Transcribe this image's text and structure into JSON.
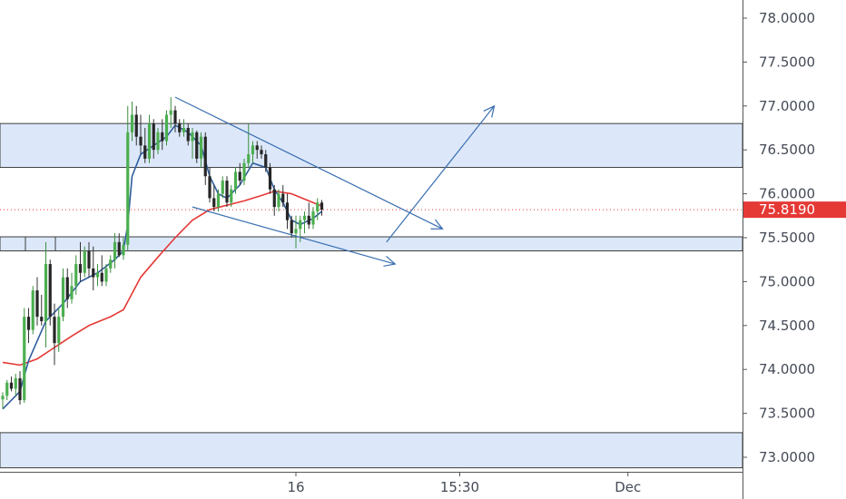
{
  "chart_data": {
    "type": "candlestick",
    "price_axis": {
      "ticks": [
        "78.0000",
        "77.5000",
        "77.0000",
        "76.5000",
        "76.0000",
        "75.5000",
        "75.0000",
        "74.5000",
        "74.0000",
        "73.5000",
        "73.0000"
      ],
      "range": [
        72.88,
        78.4
      ]
    },
    "time_axis": {
      "ticks": [
        {
          "label": "16",
          "bar": 68
        },
        {
          "label": "15:30",
          "bar": 106
        },
        {
          "label": "Dec",
          "bar": 145
        }
      ],
      "bar_range": [
        0,
        197
      ]
    },
    "last_price": {
      "value": 75.819,
      "label": "75.8190",
      "color": "#e53935"
    },
    "zones": [
      {
        "from": 76.3,
        "to": 76.8
      },
      {
        "from": 75.35,
        "to": 75.51
      },
      {
        "from": 72.88,
        "to": 73.28
      }
    ],
    "candles": [
      [
        0,
        73.66,
        73.74,
        73.55,
        73.7
      ],
      [
        1,
        73.7,
        73.88,
        73.65,
        73.85
      ],
      [
        2,
        73.85,
        73.92,
        73.75,
        73.78
      ],
      [
        3,
        73.78,
        73.95,
        73.7,
        73.9
      ],
      [
        4,
        73.9,
        73.98,
        73.6,
        73.65
      ],
      [
        5,
        73.65,
        74.7,
        73.62,
        74.6
      ],
      [
        6,
        74.6,
        74.7,
        74.3,
        74.45
      ],
      [
        7,
        74.45,
        74.95,
        74.4,
        74.9
      ],
      [
        8,
        74.9,
        75.05,
        74.5,
        74.6
      ],
      [
        9,
        74.6,
        74.85,
        74.5,
        74.55
      ],
      [
        10,
        74.55,
        75.45,
        74.25,
        75.2
      ],
      [
        11,
        75.2,
        75.25,
        74.5,
        74.6
      ],
      [
        12,
        74.6,
        74.75,
        74.05,
        74.3
      ],
      [
        13,
        74.3,
        74.7,
        74.2,
        74.6
      ],
      [
        14,
        74.6,
        75.15,
        74.55,
        75.05
      ],
      [
        15,
        75.05,
        75.15,
        74.7,
        74.8
      ],
      [
        16,
        74.8,
        75.1,
        74.75,
        74.95
      ],
      [
        17,
        74.95,
        75.3,
        74.85,
        75.2
      ],
      [
        18,
        75.2,
        75.45,
        75.0,
        75.1
      ],
      [
        19,
        75.1,
        75.4,
        75.05,
        75.35
      ],
      [
        20,
        75.35,
        75.45,
        75.05,
        75.15
      ],
      [
        21,
        75.15,
        75.4,
        74.9,
        75.05
      ],
      [
        22,
        75.05,
        75.2,
        74.95,
        75.1
      ],
      [
        23,
        75.1,
        75.3,
        74.95,
        75.0
      ],
      [
        24,
        75.0,
        75.2,
        74.95,
        75.15
      ],
      [
        25,
        75.15,
        75.3,
        75.1,
        75.25
      ],
      [
        26,
        75.25,
        75.55,
        75.15,
        75.45
      ],
      [
        27,
        75.45,
        75.55,
        75.28,
        75.3
      ],
      [
        28,
        75.3,
        75.5,
        75.25,
        75.42
      ],
      [
        29,
        75.42,
        77.0,
        75.35,
        76.7
      ],
      [
        30,
        76.7,
        77.05,
        76.6,
        76.9
      ],
      [
        31,
        76.9,
        77.0,
        76.55,
        76.65
      ],
      [
        32,
        76.65,
        76.9,
        76.45,
        76.55
      ],
      [
        33,
        76.55,
        76.75,
        76.35,
        76.4
      ],
      [
        34,
        76.4,
        76.9,
        76.35,
        76.8
      ],
      [
        35,
        76.8,
        76.85,
        76.4,
        76.5
      ],
      [
        36,
        76.5,
        76.75,
        76.45,
        76.7
      ],
      [
        37,
        76.7,
        76.85,
        76.5,
        76.6
      ],
      [
        38,
        76.6,
        76.95,
        76.55,
        76.9
      ],
      [
        39,
        76.9,
        77.1,
        76.75,
        76.95
      ],
      [
        40,
        76.95,
        77.0,
        76.7,
        76.8
      ],
      [
        41,
        76.8,
        76.85,
        76.65,
        76.7
      ],
      [
        42,
        76.7,
        76.85,
        76.65,
        76.75
      ],
      [
        43,
        76.75,
        76.8,
        76.55,
        76.6
      ],
      [
        44,
        76.6,
        76.75,
        76.4,
        76.7
      ],
      [
        45,
        76.7,
        76.72,
        76.35,
        76.4
      ],
      [
        46,
        76.4,
        76.7,
        76.3,
        76.65
      ],
      [
        47,
        76.65,
        76.7,
        76.1,
        76.2
      ],
      [
        48,
        76.2,
        76.3,
        75.9,
        75.95
      ],
      [
        49,
        75.95,
        76.1,
        75.8,
        75.85
      ],
      [
        50,
        75.85,
        76.05,
        75.8,
        76.0
      ],
      [
        51,
        76.0,
        76.2,
        75.95,
        76.15
      ],
      [
        52,
        76.15,
        76.2,
        75.85,
        75.9
      ],
      [
        53,
        75.9,
        76.1,
        75.85,
        76.05
      ],
      [
        54,
        76.05,
        76.3,
        76.0,
        76.25
      ],
      [
        55,
        76.25,
        76.35,
        76.1,
        76.15
      ],
      [
        56,
        76.15,
        76.4,
        76.1,
        76.35
      ],
      [
        57,
        76.35,
        76.8,
        76.3,
        76.45
      ],
      [
        58,
        76.45,
        76.6,
        76.35,
        76.55
      ],
      [
        59,
        76.55,
        76.6,
        76.4,
        76.5
      ],
      [
        60,
        76.5,
        76.55,
        76.4,
        76.45
      ],
      [
        61,
        76.45,
        76.5,
        76.25,
        76.3
      ],
      [
        62,
        76.3,
        76.35,
        76.0,
        76.05
      ],
      [
        63,
        76.05,
        76.1,
        75.75,
        75.85
      ],
      [
        64,
        75.85,
        76.05,
        75.8,
        76.0
      ],
      [
        65,
        76.0,
        76.1,
        75.85,
        75.9
      ],
      [
        66,
        75.9,
        76.0,
        75.6,
        75.7
      ],
      [
        67,
        75.7,
        75.75,
        75.5,
        75.55
      ],
      [
        68,
        75.55,
        75.75,
        75.38,
        75.6
      ],
      [
        69,
        75.6,
        75.75,
        75.45,
        75.7
      ],
      [
        70,
        75.7,
        75.8,
        75.55,
        75.75
      ],
      [
        71,
        75.75,
        75.9,
        75.6,
        75.65
      ],
      [
        72,
        75.65,
        75.85,
        75.6,
        75.8
      ],
      [
        73,
        75.8,
        75.95,
        75.7,
        75.9
      ],
      [
        74,
        75.9,
        75.93,
        75.75,
        75.82
      ]
    ],
    "ema_fast": {
      "color": "#2f5d9c",
      "points": [
        [
          0,
          73.55
        ],
        [
          4,
          73.75
        ],
        [
          6,
          74.1
        ],
        [
          10,
          74.55
        ],
        [
          14,
          74.75
        ],
        [
          18,
          75.0
        ],
        [
          22,
          75.1
        ],
        [
          26,
          75.25
        ],
        [
          28,
          75.35
        ],
        [
          29,
          75.65
        ],
        [
          30,
          76.2
        ],
        [
          32,
          76.45
        ],
        [
          35,
          76.55
        ],
        [
          38,
          76.65
        ],
        [
          40,
          76.78
        ],
        [
          43,
          76.7
        ],
        [
          46,
          76.55
        ],
        [
          48,
          76.2
        ],
        [
          50,
          76.0
        ],
        [
          52,
          75.95
        ],
        [
          55,
          76.1
        ],
        [
          58,
          76.35
        ],
        [
          61,
          76.3
        ],
        [
          63,
          76.05
        ],
        [
          65,
          75.9
        ],
        [
          67,
          75.7
        ],
        [
          69,
          75.65
        ],
        [
          72,
          75.72
        ],
        [
          74,
          75.8
        ]
      ]
    },
    "ema_slow": {
      "color": "#e53935",
      "points": [
        [
          0,
          74.08
        ],
        [
          4,
          74.05
        ],
        [
          8,
          74.12
        ],
        [
          12,
          74.25
        ],
        [
          16,
          74.38
        ],
        [
          20,
          74.5
        ],
        [
          25,
          74.6
        ],
        [
          28,
          74.68
        ],
        [
          32,
          75.05
        ],
        [
          36,
          75.28
        ],
        [
          40,
          75.5
        ],
        [
          44,
          75.7
        ],
        [
          48,
          75.82
        ],
        [
          52,
          75.87
        ],
        [
          56,
          75.92
        ],
        [
          60,
          75.98
        ],
        [
          63,
          76.03
        ],
        [
          67,
          76.0
        ],
        [
          71,
          75.92
        ],
        [
          74,
          75.86
        ]
      ]
    },
    "trendlines": [
      {
        "from": [
          40,
          77.1
        ],
        "to": [
          102,
          75.6
        ]
      },
      {
        "from": [
          44,
          75.85
        ],
        "to": [
          91,
          75.2
        ]
      }
    ],
    "arrow": {
      "from": [
        89,
        75.45
      ],
      "to": [
        114,
        77.0
      ]
    }
  }
}
